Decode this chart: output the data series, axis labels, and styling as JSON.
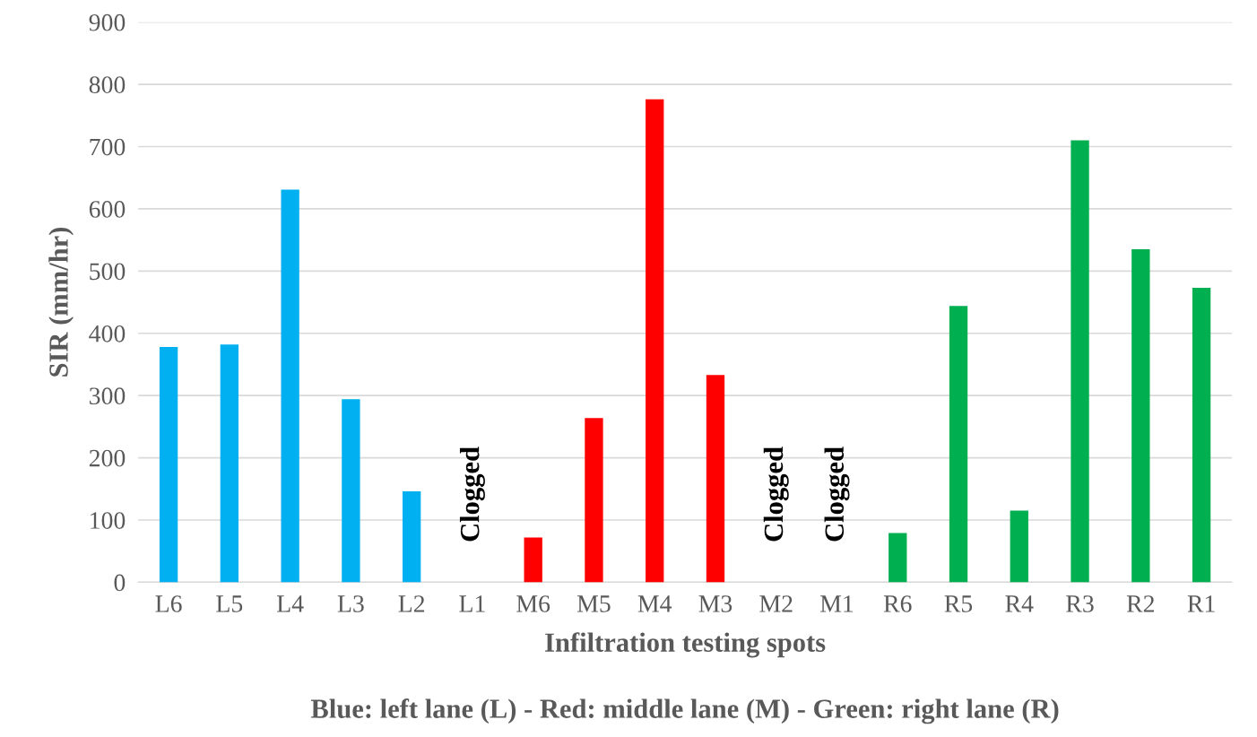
{
  "chart_data": {
    "type": "bar",
    "ylabel": "SIR (mm/hr)",
    "xlabel": "Infiltration testing spots",
    "categories": [
      "L6",
      "L5",
      "L4",
      "L3",
      "L2",
      "L1",
      "M6",
      "M5",
      "M4",
      "M3",
      "M2",
      "M1",
      "R6",
      "R5",
      "R4",
      "R3",
      "R2",
      "R1"
    ],
    "values": [
      378,
      382,
      631,
      294,
      146,
      null,
      72,
      264,
      776,
      333,
      null,
      null,
      79,
      444,
      115,
      710,
      535,
      473
    ],
    "colors": [
      "#00b0f0",
      "#00b0f0",
      "#00b0f0",
      "#00b0f0",
      "#00b0f0",
      "#00b0f0",
      "#ff0000",
      "#ff0000",
      "#ff0000",
      "#ff0000",
      "#ff0000",
      "#ff0000",
      "#00b050",
      "#00b050",
      "#00b050",
      "#00b050",
      "#00b050",
      "#00b050"
    ],
    "ylim": [
      0,
      900
    ],
    "yticks": [
      0,
      100,
      200,
      300,
      400,
      500,
      600,
      700,
      800,
      900
    ],
    "grid": "y",
    "annotations": [
      "Clogged",
      "Clogged",
      "Clogged",
      "Blue: left lane (L) - Red: middle lane (M) - Green: right lane (R)"
    ]
  }
}
